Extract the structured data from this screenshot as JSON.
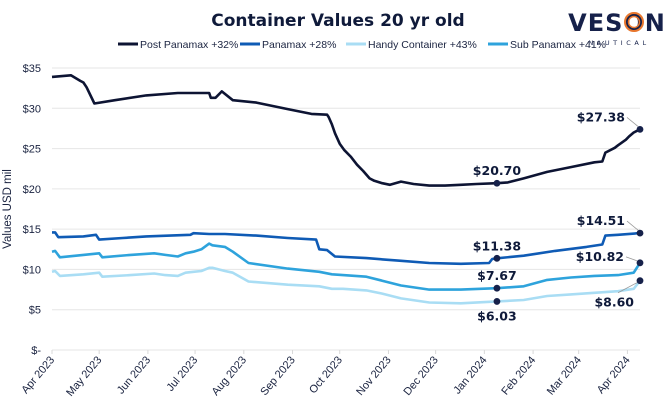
{
  "logo": {
    "name": "VESON",
    "sub": "NAUTICAL",
    "accent": "#e8772e"
  },
  "chart_data": {
    "type": "line",
    "title": "Container Values 20 yr old",
    "xlabel": "",
    "ylabel": "Values USD mil",
    "ylim": [
      0,
      35
    ],
    "yticks": [
      0,
      5,
      10,
      15,
      20,
      25,
      30,
      35
    ],
    "ytick_labels": [
      "$-",
      "$5",
      "$10",
      "$15",
      "$20",
      "$25",
      "$30",
      "$35"
    ],
    "x_unit": "days since 2023-04-01",
    "xlim": [
      0,
      374
    ],
    "xticks": [
      0,
      30,
      61,
      91,
      122,
      153,
      183,
      214,
      244,
      275,
      306,
      335,
      366
    ],
    "xtick_labels": [
      "Apr 2023",
      "May 2023",
      "Jun 2023",
      "Jul 2023",
      "Aug 2023",
      "Sep 2023",
      "Oct 2023",
      "Nov 2023",
      "Dec 2023",
      "Jan 2024",
      "Feb 2024",
      "Mar 2024",
      "Apr 2024"
    ],
    "grid": "horizontal",
    "legend_position": "top",
    "series": [
      {
        "name": "Post Panamax +32%",
        "color": "#0d1433",
        "x": [
          0,
          12,
          18,
          20,
          22,
          27,
          40,
          60,
          80,
          95,
          100,
          101,
          104,
          108,
          115,
          130,
          150,
          165,
          175,
          176,
          178,
          180,
          183,
          186,
          190,
          194,
          198,
          202,
          205,
          210,
          215,
          222,
          230,
          240,
          250,
          260,
          270,
          283,
          290,
          300,
          315,
          330,
          345,
          350,
          352,
          358,
          360,
          365,
          367,
          370,
          374
        ],
        "y": [
          33.9,
          34.1,
          33.4,
          33.2,
          32.6,
          30.6,
          31.0,
          31.6,
          31.9,
          31.9,
          31.9,
          31.3,
          31.3,
          32.1,
          31.0,
          30.7,
          29.9,
          29.3,
          29.2,
          28.9,
          28.0,
          26.9,
          25.6,
          24.8,
          24.0,
          23.0,
          22.2,
          21.3,
          21.0,
          20.7,
          20.5,
          20.9,
          20.6,
          20.4,
          20.4,
          20.5,
          20.6,
          20.7,
          20.8,
          21.3,
          22.1,
          22.7,
          23.3,
          23.4,
          24.5,
          25.1,
          25.4,
          26.1,
          26.5,
          27.0,
          27.38
        ]
      },
      {
        "name": "Panamax +28%",
        "color": "#0f5bb5",
        "x": [
          0,
          2,
          4,
          20,
          28,
          30,
          45,
          60,
          75,
          88,
          90,
          100,
          110,
          130,
          150,
          168,
          170,
          175,
          180,
          200,
          220,
          240,
          260,
          278,
          280,
          283,
          300,
          320,
          340,
          350,
          352,
          360,
          374
        ],
        "y": [
          14.6,
          14.6,
          14.0,
          14.1,
          14.3,
          13.7,
          13.9,
          14.1,
          14.2,
          14.3,
          14.5,
          14.4,
          14.4,
          14.2,
          13.9,
          13.7,
          12.5,
          12.4,
          11.6,
          11.4,
          11.1,
          10.8,
          10.7,
          10.8,
          11.3,
          11.38,
          11.7,
          12.3,
          12.8,
          13.1,
          14.2,
          14.3,
          14.51
        ]
      },
      {
        "name": "Handy Container +43%",
        "color": "#a9ddf4",
        "x": [
          0,
          2,
          5,
          20,
          30,
          32,
          50,
          65,
          72,
          80,
          85,
          90,
          95,
          100,
          102,
          110,
          115,
          125,
          150,
          170,
          178,
          185,
          200,
          210,
          222,
          240,
          260,
          283,
          300,
          315,
          330,
          345,
          360,
          370,
          374
        ],
        "y": [
          9.7,
          9.8,
          9.2,
          9.4,
          9.6,
          9.1,
          9.3,
          9.5,
          9.3,
          9.2,
          9.6,
          9.7,
          9.8,
          10.2,
          10.2,
          9.8,
          9.6,
          8.5,
          8.1,
          7.9,
          7.6,
          7.6,
          7.4,
          7.0,
          6.4,
          5.9,
          5.8,
          6.03,
          6.2,
          6.7,
          6.9,
          7.1,
          7.3,
          7.6,
          8.6
        ]
      },
      {
        "name": "Sub Panamax +41%",
        "color": "#2ea3dc",
        "x": [
          0,
          2,
          5,
          20,
          30,
          32,
          50,
          65,
          72,
          80,
          85,
          90,
          95,
          100,
          102,
          110,
          115,
          125,
          150,
          170,
          178,
          185,
          200,
          210,
          222,
          240,
          260,
          283,
          300,
          315,
          330,
          345,
          360,
          370,
          374
        ],
        "y": [
          12.2,
          12.3,
          11.5,
          11.8,
          12.0,
          11.5,
          11.8,
          12.0,
          11.8,
          11.6,
          12.0,
          12.2,
          12.5,
          13.2,
          13.0,
          12.8,
          12.2,
          10.8,
          10.1,
          9.7,
          9.4,
          9.3,
          9.1,
          8.6,
          8.0,
          7.5,
          7.5,
          7.67,
          7.9,
          8.7,
          9.0,
          9.2,
          9.3,
          9.6,
          10.82
        ]
      }
    ],
    "annotations": [
      {
        "series": 0,
        "x": 283,
        "y": 20.7,
        "label": "$20.70",
        "pos": "above"
      },
      {
        "series": 0,
        "x": 374,
        "y": 27.38,
        "label": "$27.38",
        "pos": "left-above"
      },
      {
        "series": 1,
        "x": 283,
        "y": 11.38,
        "label": "$11.38",
        "pos": "above"
      },
      {
        "series": 1,
        "x": 374,
        "y": 14.51,
        "label": "$14.51",
        "pos": "left-above"
      },
      {
        "series": 3,
        "x": 283,
        "y": 7.67,
        "label": "$7.67",
        "pos": "above"
      },
      {
        "series": 3,
        "x": 374,
        "y": 10.82,
        "label": "$10.82",
        "pos": "left"
      },
      {
        "series": 2,
        "x": 283,
        "y": 6.03,
        "label": "$6.03",
        "pos": "below"
      },
      {
        "series": 2,
        "x": 374,
        "y": 8.6,
        "label": "$8.60",
        "pos": "left-below"
      }
    ]
  }
}
